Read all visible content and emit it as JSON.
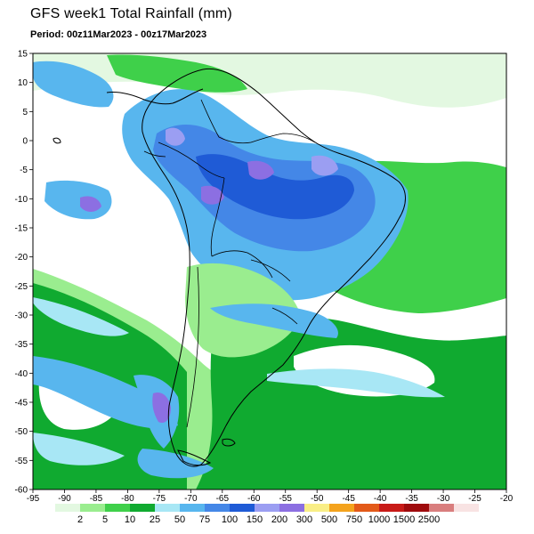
{
  "title": "GFS week1 Total Rainfall (mm)",
  "period": "Period: 00z11Mar2023 - 00z17Mar2023",
  "map": {
    "lon_range": [
      -95,
      -20
    ],
    "lat_range": [
      -60,
      15
    ],
    "lon_ticks": [
      -95,
      -90,
      -85,
      -80,
      -75,
      -70,
      -65,
      -60,
      -55,
      -50,
      -45,
      -40,
      -35,
      -30,
      -25,
      -20
    ],
    "lat_ticks": [
      15,
      10,
      5,
      0,
      -5,
      -10,
      -15,
      -20,
      -25,
      -30,
      -35,
      -40,
      -45,
      -50,
      -55,
      -60
    ],
    "lon_tick_labels": [
      "-95",
      "-90",
      "-85",
      "-80",
      "-75",
      "-70",
      "-65",
      "-60",
      "-55",
      "-50",
      "-45",
      "-40",
      "-35",
      "-30",
      "-25",
      "-20"
    ],
    "lat_tick_labels": [
      "15",
      "10",
      "5",
      "0",
      "-5",
      "-10",
      "-15",
      "-20",
      "-25",
      "-30",
      "-35",
      "-40",
      "-45",
      "-50",
      "-55",
      "-60"
    ]
  },
  "legend": {
    "thresholds": [
      "2",
      "5",
      "10",
      "25",
      "50",
      "75",
      "100",
      "150",
      "200",
      "300",
      "500",
      "750",
      "1000",
      "1500",
      "2500"
    ],
    "colors": [
      "#e3f8e1",
      "#9aed8f",
      "#3fd04a",
      "#10aa30",
      "#a8e7f5",
      "#58b6ee",
      "#4487e7",
      "#1f5bd6",
      "#9b9ef2",
      "#8c6fe2",
      "#f9ee86",
      "#f4a31d",
      "#e35a19",
      "#c81b18",
      "#9f0b0d",
      "#d97e7e",
      "#f8e3e3"
    ]
  },
  "colors": {
    "ocean_light": "#e3f8e1",
    "green_light": "#9aed8f",
    "green": "#3fd04a",
    "green_dark": "#10aa30",
    "cyan_light": "#a8e7f5",
    "blue": "#58b6ee",
    "blue_mid": "#4487e7",
    "blue_dark": "#1f5bd6",
    "purple_light": "#9b9ef2",
    "purple": "#8c6fe2",
    "outline": "#000000"
  }
}
